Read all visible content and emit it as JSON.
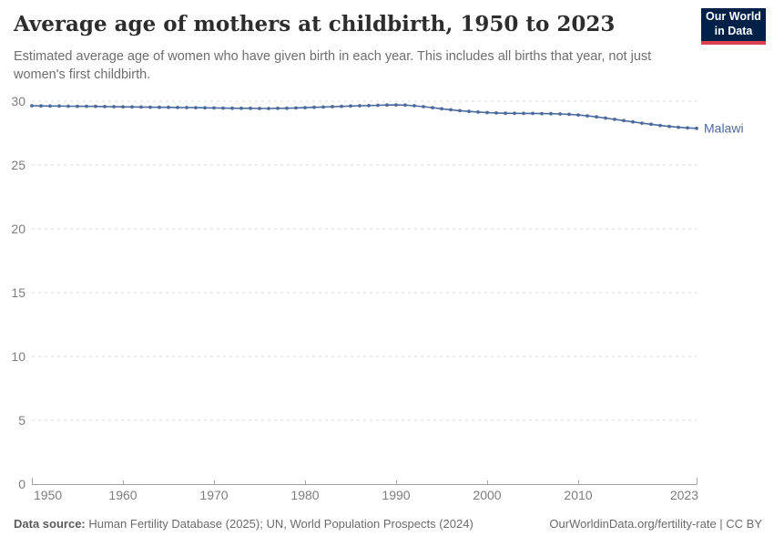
{
  "header": {
    "title": "Average age of mothers at childbirth, 1950 to 2023",
    "subtitle": "Estimated average age of women who have given birth in each year. This includes all births that year, not just women's first childbirth.",
    "logo": {
      "line1": "Our World",
      "line2": "in Data",
      "bg_color": "#002147",
      "accent_color": "#D8414D"
    }
  },
  "chart_data": {
    "type": "line",
    "title": "Average age of mothers at childbirth, 1950 to 2023",
    "xlabel": "",
    "ylabel": "",
    "xlim": [
      1950,
      2023
    ],
    "ylim": [
      0,
      30
    ],
    "xticks": [
      1950,
      1960,
      1970,
      1980,
      1990,
      2000,
      2010,
      2023
    ],
    "yticks": [
      0,
      5,
      10,
      15,
      20,
      25,
      30
    ],
    "grid": true,
    "grid_style": "dashed",
    "legend_position": "end-of-line-label",
    "x": [
      1950,
      1951,
      1952,
      1953,
      1954,
      1955,
      1956,
      1957,
      1958,
      1959,
      1960,
      1961,
      1962,
      1963,
      1964,
      1965,
      1966,
      1967,
      1968,
      1969,
      1970,
      1971,
      1972,
      1973,
      1974,
      1975,
      1976,
      1977,
      1978,
      1979,
      1980,
      1981,
      1982,
      1983,
      1984,
      1985,
      1986,
      1987,
      1988,
      1989,
      1990,
      1991,
      1992,
      1993,
      1994,
      1995,
      1996,
      1997,
      1998,
      1999,
      2000,
      2001,
      2002,
      2003,
      2004,
      2005,
      2006,
      2007,
      2008,
      2009,
      2010,
      2011,
      2012,
      2013,
      2014,
      2015,
      2016,
      2017,
      2018,
      2019,
      2020,
      2021,
      2022,
      2023
    ],
    "series": [
      {
        "name": "Malawi",
        "color": "#4C6A9C",
        "values": [
          29.64,
          29.63,
          29.62,
          29.62,
          29.61,
          29.6,
          29.6,
          29.59,
          29.58,
          29.57,
          29.56,
          29.55,
          29.54,
          29.53,
          29.52,
          29.52,
          29.51,
          29.5,
          29.49,
          29.48,
          29.47,
          29.46,
          29.45,
          29.44,
          29.44,
          29.43,
          29.43,
          29.44,
          29.45,
          29.47,
          29.49,
          29.52,
          29.54,
          29.57,
          29.59,
          29.62,
          29.64,
          29.66,
          29.68,
          29.7,
          29.71,
          29.69,
          29.64,
          29.57,
          29.49,
          29.41,
          29.33,
          29.26,
          29.2,
          29.15,
          29.11,
          29.08,
          29.06,
          29.05,
          29.04,
          29.04,
          29.03,
          29.02,
          29.0,
          28.97,
          28.92,
          28.85,
          28.77,
          28.68,
          28.58,
          28.48,
          28.38,
          28.28,
          28.19,
          28.1,
          28.02,
          27.96,
          27.91,
          27.87
        ]
      }
    ],
    "colors": {
      "grid": "#d9d9d9",
      "axis": "#a3a3a3",
      "tick_label": "#7d7d7d"
    }
  },
  "footer": {
    "datasource_label": "Data source:",
    "datasource_text": " Human Fertility Database (2025); UN, World Population Prospects (2024)",
    "link_text": "OurWorldinData.org/fertility-rate | CC BY"
  }
}
